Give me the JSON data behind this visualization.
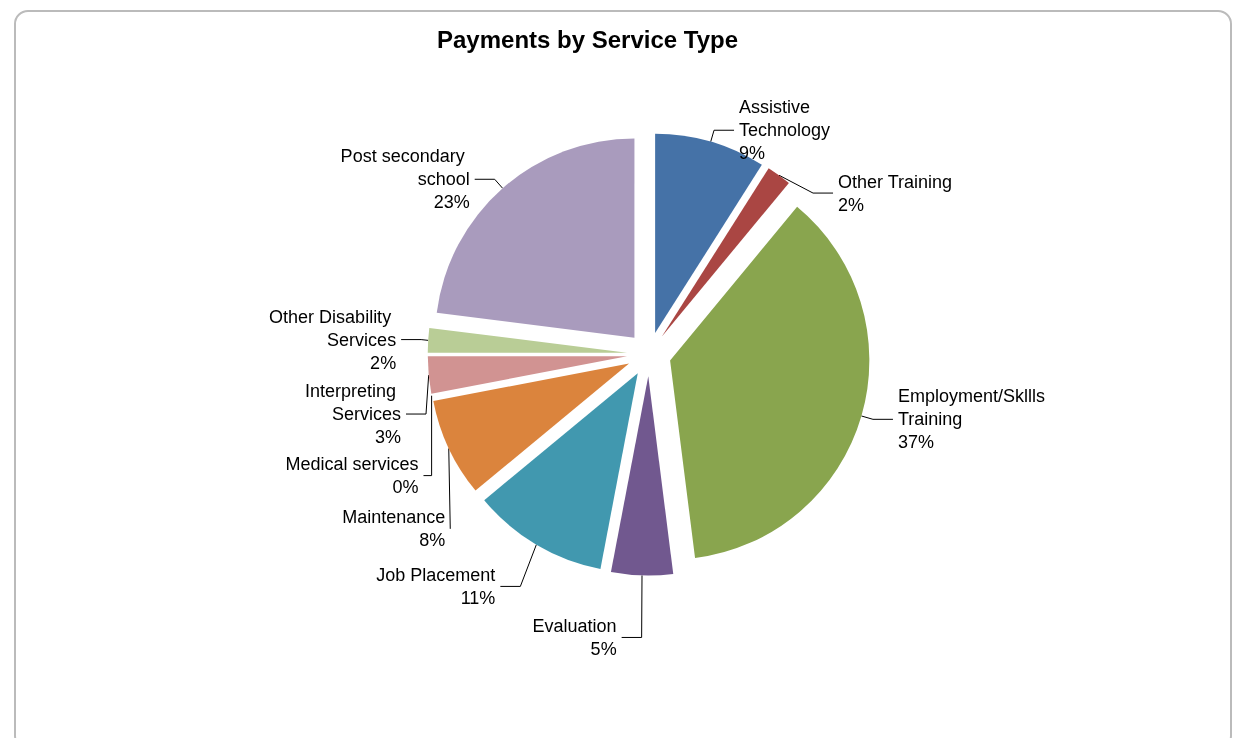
{
  "chart_data": {
    "type": "pie",
    "title": "Payments by Service Type",
    "categories": [
      "Assistive Technology",
      "Other Training",
      "Employment/Skllls Training",
      "Evaluation",
      "Job Placement",
      "Maintenance",
      "Medical services",
      "Interpreting Services",
      "Other Disability Services",
      "Post secondary school"
    ],
    "values": [
      9,
      2,
      37,
      5,
      11,
      8,
      0,
      3,
      2,
      23
    ],
    "value_labels": [
      "9%",
      "2%",
      "37%",
      "5%",
      "11%",
      "8%",
      "0%",
      "3%",
      "2%",
      "23%"
    ],
    "colors": [
      "#4572a7",
      "#aa4643",
      "#89a54e",
      "#71588f",
      "#4198af",
      "#db843d",
      "#93a9cf",
      "#d19392",
      "#b9cd96",
      "#a99bbd"
    ],
    "legend": false
  }
}
